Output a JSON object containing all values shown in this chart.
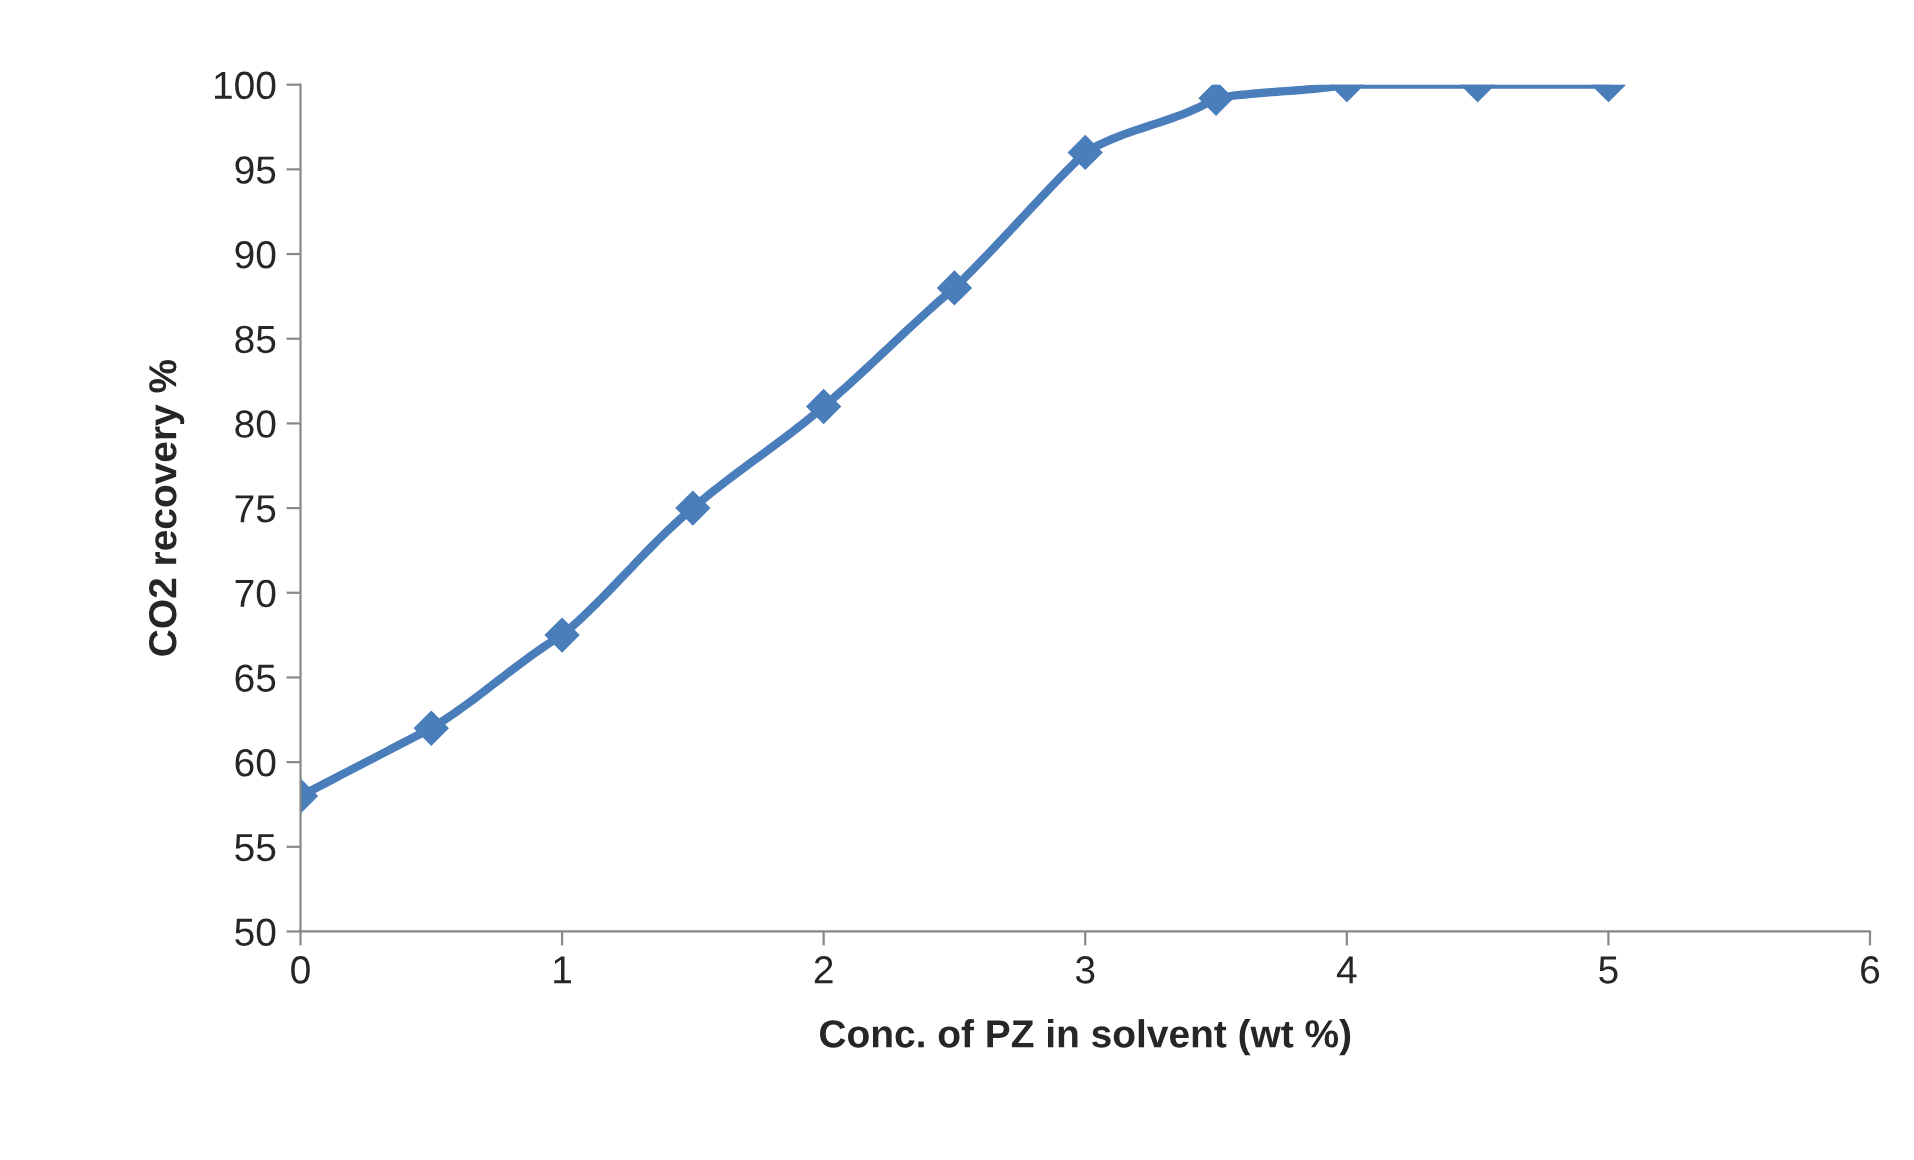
{
  "chart_data": {
    "type": "line",
    "xlabel": "Conc. of PZ in solvent (wt %)",
    "ylabel": "CO2 recovery %",
    "x": [
      0,
      0.5,
      1,
      1.5,
      2,
      2.5,
      3,
      3.5,
      4,
      4.5,
      5
    ],
    "series": [
      {
        "color": "#4a7ebb",
        "values": [
          58,
          62,
          67.5,
          75,
          81,
          88,
          96,
          99.2,
          100,
          100,
          100
        ]
      }
    ],
    "xlim": [
      0,
      6
    ],
    "xticks": [
      0,
      1,
      2,
      3,
      4,
      5,
      6
    ],
    "ylim": [
      50,
      100
    ],
    "yticks": [
      50,
      55,
      60,
      65,
      70,
      75,
      80,
      85,
      90,
      95,
      100
    ],
    "grid": false,
    "marker": "diamond",
    "line_style": "solid"
  }
}
